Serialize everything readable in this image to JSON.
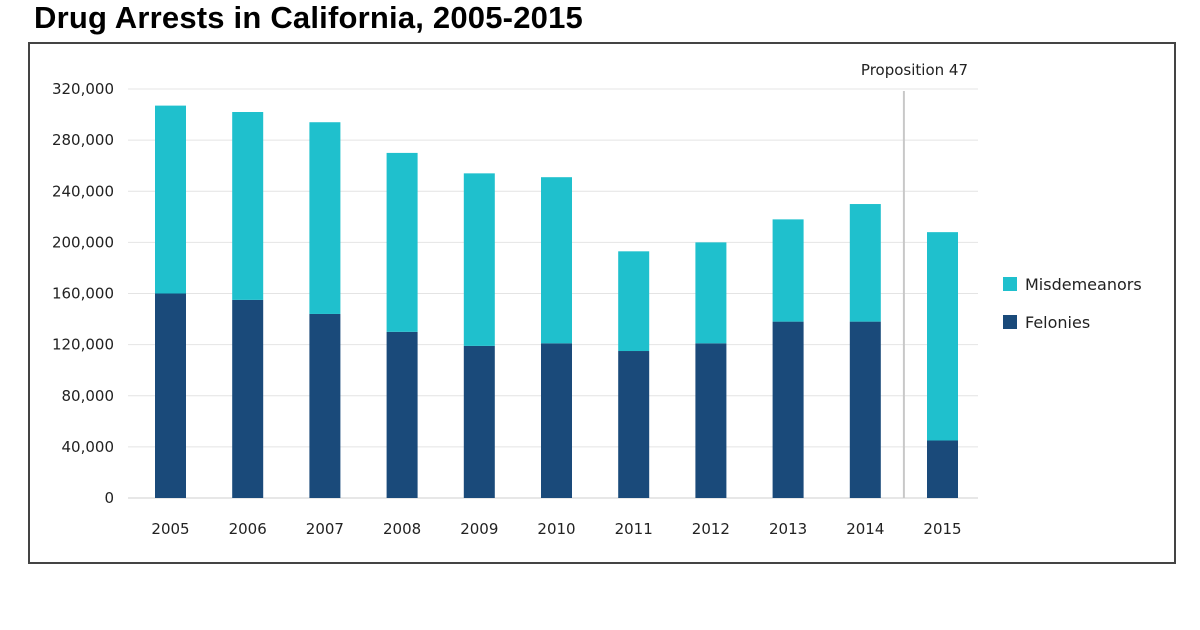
{
  "title": "Drug Arrests in California, 2005-2015",
  "chart_data": {
    "type": "bar",
    "stacked": true,
    "title": "Drug Arrests in California, 2005-2015",
    "categories": [
      "2005",
      "2006",
      "2007",
      "2008",
      "2009",
      "2010",
      "2011",
      "2012",
      "2013",
      "2014",
      "2015"
    ],
    "series": [
      {
        "name": "Felonies",
        "color": "#1a4a7a",
        "values": [
          160000,
          155000,
          144000,
          130000,
          119000,
          121000,
          115000,
          121000,
          138000,
          138000,
          45000
        ]
      },
      {
        "name": "Misdemeanors",
        "color": "#1fc0cd",
        "values": [
          147000,
          147000,
          150000,
          140000,
          135000,
          130000,
          78000,
          79000,
          80000,
          92000,
          163000
        ]
      }
    ],
    "ylim": [
      0,
      320000
    ],
    "yticks": [
      0,
      40000,
      80000,
      120000,
      160000,
      200000,
      240000,
      280000,
      320000
    ],
    "ytick_labels": [
      "0",
      "40,000",
      "80,000",
      "120,000",
      "160,000",
      "200,000",
      "240,000",
      "280,000",
      "320,000"
    ],
    "grid": true,
    "legend": {
      "position": "right",
      "order": [
        "Misdemeanors",
        "Felonies"
      ]
    },
    "annotation": {
      "text": "Proposition 47",
      "between": [
        "2014",
        "2015"
      ]
    }
  }
}
